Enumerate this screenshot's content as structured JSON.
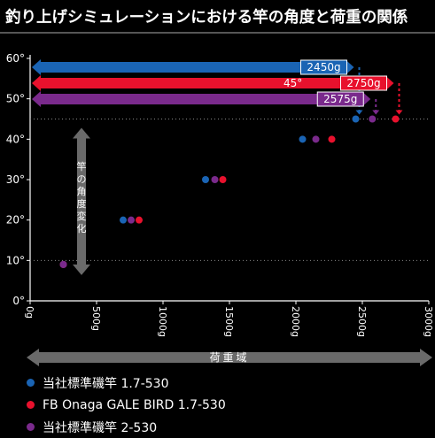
{
  "title": "釣り上げシミュレーションにおける竿の角度と荷重の関係",
  "colors": {
    "blue": "#1a64b4",
    "red": "#e8112d",
    "purple": "#7a2a8c",
    "gray": "#555555",
    "background": "#000000"
  },
  "chart_data": {
    "type": "scatter",
    "title": "釣り上げシミュレーションにおける竿の角度と荷重の関係",
    "xlabel": "荷重域",
    "ylabel": "竿の角度変化",
    "xlim": [
      0,
      3000
    ],
    "ylim": [
      0,
      60
    ],
    "x_ticks": [
      "0g",
      "500g",
      "1000g",
      "1500g",
      "2000g",
      "2500g",
      "3000g"
    ],
    "y_ticks": [
      "0°",
      "10°",
      "20°",
      "30°",
      "40°",
      "50°",
      "60°"
    ],
    "reference_line": {
      "y": 45,
      "label": "45°"
    },
    "series": [
      {
        "name": "当社標準磯竿 1.7-530",
        "color": "#1a64b4",
        "x": [
          250,
          700,
          1320,
          2050,
          2450
        ],
        "y": [
          9,
          20,
          30,
          40,
          45
        ],
        "bar_label": "2450g",
        "bar_end": 2450
      },
      {
        "name": "FB Onaga GALE BIRD 1.7-530",
        "color": "#e8112d",
        "x": [
          250,
          820,
          1450,
          2270,
          2750
        ],
        "y": [
          9,
          20,
          30,
          40,
          45
        ],
        "bar_label": "2750g",
        "bar_end": 2750
      },
      {
        "name": "当社標準磯竿 2-530",
        "color": "#7a2a8c",
        "x": [
          250,
          760,
          1390,
          2150,
          2575
        ],
        "y": [
          9,
          20,
          30,
          40,
          45
        ],
        "bar_label": "2575g",
        "bar_end": 2575
      }
    ],
    "annotations": {
      "angle_arrow_label": "竿の角度変化",
      "load_arrow_label": "荷重域"
    },
    "grid": false,
    "legend_position": "bottom-left"
  }
}
